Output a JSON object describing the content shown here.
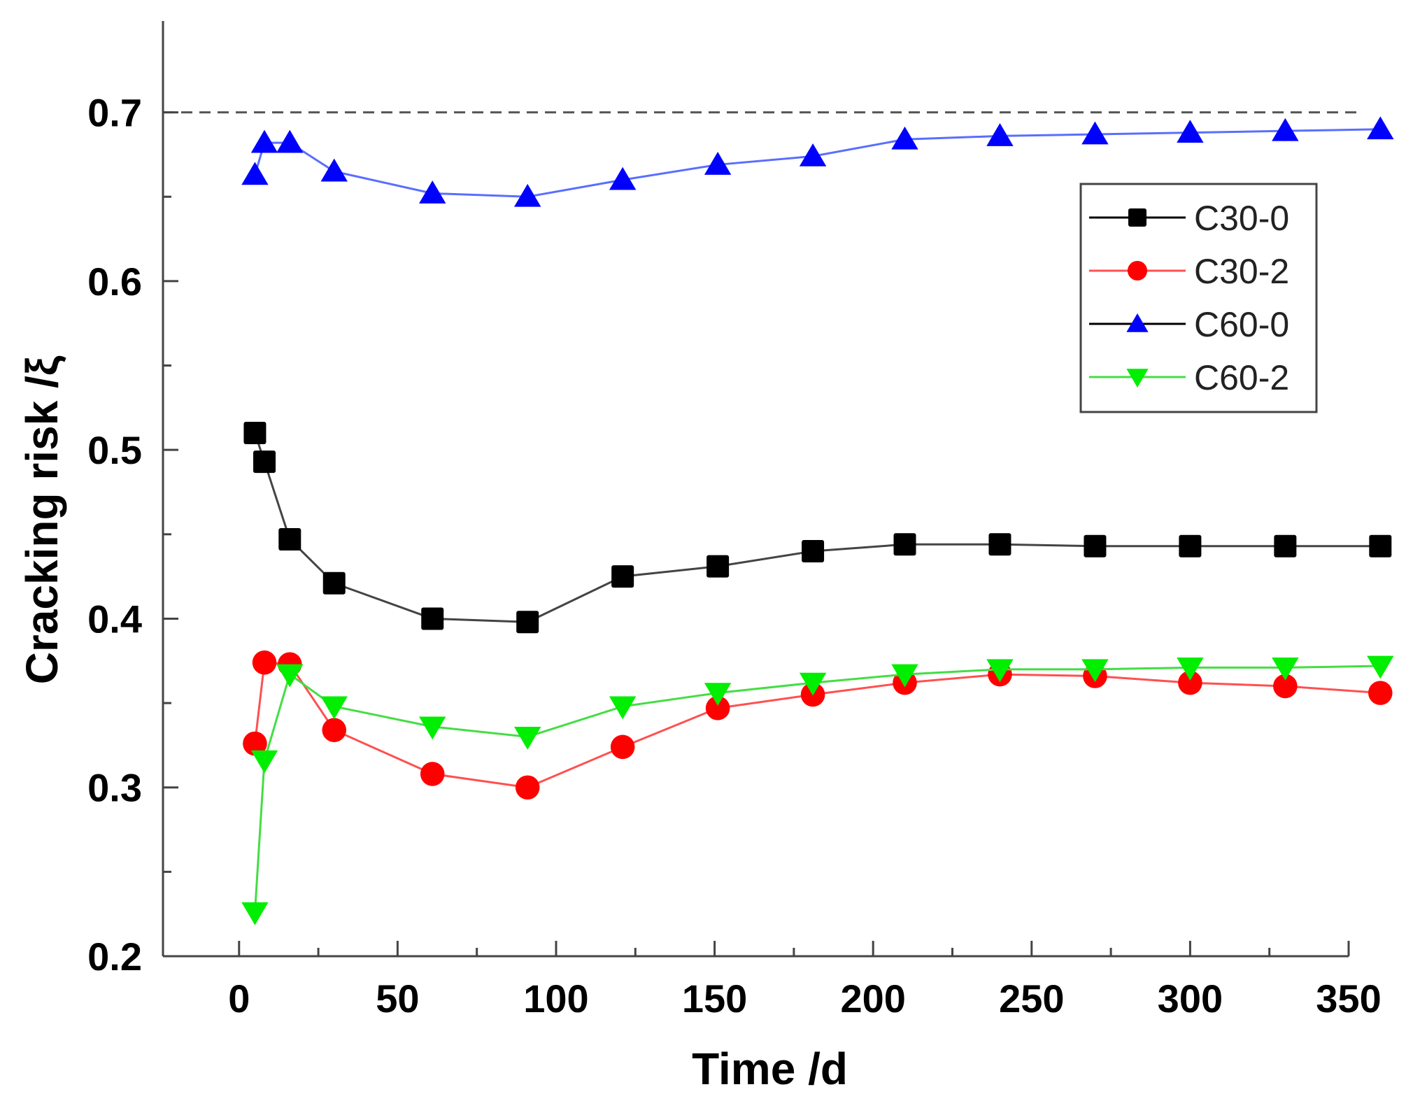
{
  "chart_data": {
    "type": "line",
    "title": "",
    "xlabel": "Time /d",
    "ylabel": "Cracking risk /ξ",
    "xlim": [
      -24,
      350
    ],
    "ylim": [
      0.2,
      0.75
    ],
    "xticks": [
      0,
      50,
      100,
      150,
      200,
      250,
      300,
      350
    ],
    "yticks": [
      0.2,
      0.3,
      0.4,
      0.5,
      0.6,
      0.7
    ],
    "xtick_labels": [
      "0",
      "50",
      "100",
      "150",
      "200",
      "250",
      "300",
      "350"
    ],
    "ytick_labels": [
      "0.2",
      "0.3",
      "0.4",
      "0.5",
      "0.6",
      "0.7"
    ],
    "reference_line": {
      "y": 0.7,
      "style": "dashed"
    },
    "legend_position": "top-right",
    "x": [
      5,
      8,
      16,
      30,
      61,
      91,
      121,
      151,
      181,
      210,
      240,
      270,
      300,
      330,
      360
    ],
    "series": [
      {
        "name": "C30-0",
        "color": "#000000",
        "line_color": "#444444",
        "marker": "square",
        "values": [
          0.51,
          0.493,
          0.447,
          0.421,
          0.4,
          0.398,
          0.425,
          0.431,
          0.44,
          0.444,
          0.444,
          0.443,
          0.443,
          0.443,
          0.443
        ]
      },
      {
        "name": "C30-2",
        "color": "#ff0000",
        "line_color": "#ff5050",
        "marker": "circle",
        "values": [
          0.326,
          0.374,
          0.373,
          0.334,
          0.308,
          0.3,
          0.324,
          0.347,
          0.355,
          0.362,
          0.367,
          0.366,
          0.362,
          0.36,
          0.356
        ]
      },
      {
        "name": "C60-0",
        "color": "#0000ff",
        "line_color": "#5a6eff",
        "marker": "triangle-up",
        "values": [
          0.663,
          0.682,
          0.682,
          0.665,
          0.652,
          0.65,
          0.66,
          0.669,
          0.674,
          0.684,
          0.686,
          0.687,
          0.688,
          0.689,
          0.69
        ]
      },
      {
        "name": "C60-2",
        "color": "#00ee00",
        "line_color": "#44dd44",
        "marker": "triangle-down",
        "values": [
          0.226,
          0.316,
          0.367,
          0.348,
          0.336,
          0.33,
          0.348,
          0.356,
          0.362,
          0.367,
          0.37,
          0.37,
          0.371,
          0.371,
          0.372
        ]
      }
    ]
  }
}
